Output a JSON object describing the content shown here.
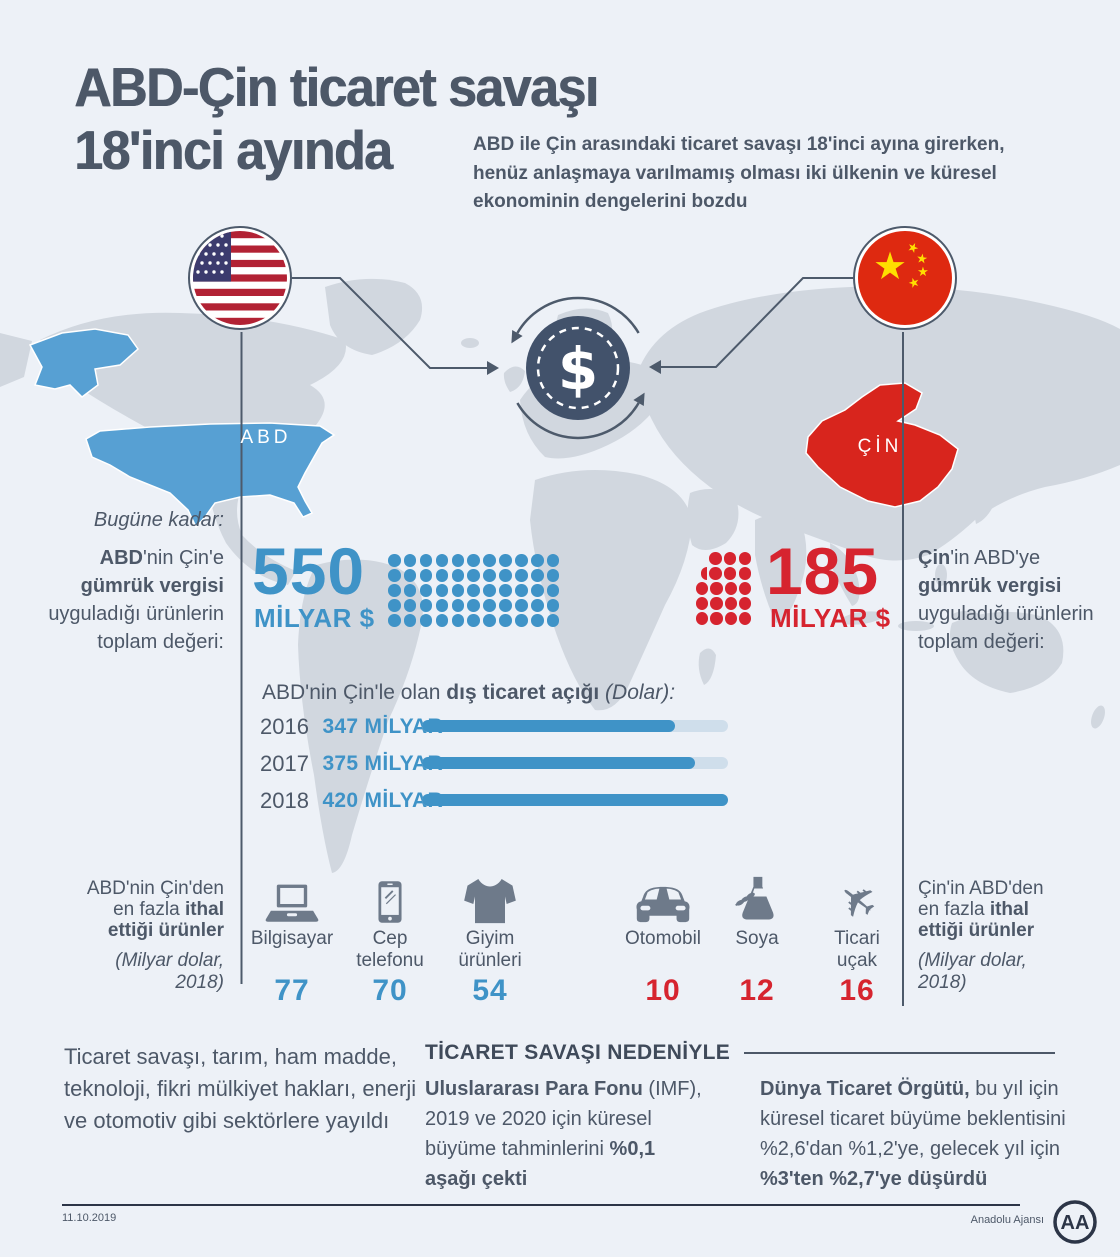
{
  "colors": {
    "blue": "#3f93c7",
    "red": "#d6242f",
    "slate": "#4d5868",
    "map_gray": "#d1d7df",
    "bar_track": "#cfdeeb",
    "us_map_blue": "#57a0d3",
    "china_red": "#d8251d",
    "flag_red": "#b22234",
    "flag_blue": "#3c3b6e",
    "star_yellow": "#ffde00"
  },
  "header": {
    "title_line1": "ABD-Çin ticaret savaşı",
    "title_line2": "18'inci ayında",
    "subtitle": "ABD ile Çin arasındaki ticaret savaşı 18'inci ayına girerken,\nhenüz anlaşmaya varılmamış olması iki ülkenin ve küresel\nekonominin dengelerini bozdu"
  },
  "map": {
    "us_label": "ABD",
    "china_label": "ÇİN"
  },
  "hub": {
    "symbol": "$"
  },
  "tariffs": {
    "intro": "Bugüne kadar:",
    "us": {
      "party_bold": "ABD",
      "party_rest": "'nin Çin'e",
      "desc_bold": "gümrük vergisi",
      "desc_line3": "uyguladığı ürünlerin",
      "desc_line4": "toplam değeri:",
      "value": "550",
      "unit": "MİLYAR $",
      "value_billion": 550,
      "dot_grid": {
        "rows": 5,
        "cols": 11
      }
    },
    "china": {
      "party_bold": "Çin",
      "party_rest": "'in ABD'ye",
      "desc_bold": "gümrük vergisi",
      "desc_line3": "uyguladığı ürünlerin",
      "desc_line4": "toplam değeri:",
      "value": "185",
      "unit": "MİLYAR $",
      "value_billion": 185,
      "dot_rows": [
        3,
        3,
        4,
        4,
        4
      ],
      "half_dot_row": 1
    }
  },
  "chart_data": {
    "type": "bar",
    "title": "ABD'nin Çin'le olan dış ticaret açığı (Dolar):",
    "title_prefix": "ABD'nin Çin'le olan ",
    "title_bold": "dış ticaret açığı",
    "title_suffix": " (Dolar):",
    "categories": [
      "2016",
      "2017",
      "2018"
    ],
    "values": [
      347,
      375,
      420
    ],
    "value_labels": [
      "347 MİLYAR",
      "375 MİLYAR",
      "420 MİLYAR"
    ],
    "xlim": [
      0,
      420
    ],
    "grid": false,
    "legend": false
  },
  "imports": {
    "us": {
      "head_line1": "ABD'nin Çin'den",
      "head_line2_pre": "en fazla ",
      "head_line2_bold": "ithal",
      "head_line3_bold": "ettiği ürünler",
      "note_line1": "(Milyar dolar,",
      "note_line2": "2018)",
      "items": [
        {
          "icon": "laptop-icon",
          "label": "Bilgisayar",
          "label2": "",
          "value": "77"
        },
        {
          "icon": "smartphone-icon",
          "label": "Cep",
          "label2": "telefonu",
          "value": "70"
        },
        {
          "icon": "sweater-icon",
          "label": "Giyim",
          "label2": "ürünleri",
          "value": "54"
        }
      ]
    },
    "china": {
      "head_line1": "Çin'in ABD'den",
      "head_line2_pre": "en fazla ",
      "head_line2_bold": "ithal",
      "head_line3_bold": "ettiği ürünler",
      "note_line1": "(Milyar dolar,",
      "note_line2": "2018)",
      "items": [
        {
          "icon": "car-icon",
          "label": "Otomobil",
          "label2": "",
          "value": "10"
        },
        {
          "icon": "soy-icon",
          "label": "Soya",
          "label2": "",
          "value": "12"
        },
        {
          "icon": "plane-icon",
          "label": "Ticari",
          "label2": "uçak",
          "value": "16"
        }
      ]
    }
  },
  "spread_note": "Ticaret savaşı, tarım, ham madde,\nteknoloji, fikri mülkiyet hakları, enerji\nve otomotiv gibi sektörlere yayıldı",
  "consequences": {
    "heading": "TİCARET SAVAŞI NEDENİYLE",
    "imf_bold1": "Uluslararası Para Fonu",
    "imf_mid": " (IMF),\n2019 ve 2020 için küresel\nbüyüme tahminlerini ",
    "imf_bold2": "%0,1\naşağı çekti",
    "wto_bold1": "Dünya Ticaret Örgütü,",
    "wto_mid": " bu yıl için\nküresel ticaret büyüme beklentisini\n%2,6'dan %1,2'ye, gelecek yıl için\n",
    "wto_bold2": "%3'ten %2,7'ye düşürdü"
  },
  "footer": {
    "date": "11.10.2019",
    "credit": "Anadolu Ajansı",
    "logo_text": "AA"
  }
}
